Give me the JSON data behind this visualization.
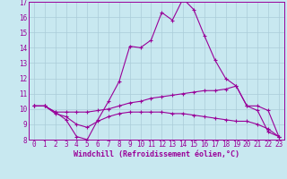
{
  "xlabel": "Windchill (Refroidissement éolien,°C)",
  "xlim": [
    -0.5,
    23.5
  ],
  "ylim": [
    8,
    17
  ],
  "xticks": [
    0,
    1,
    2,
    3,
    4,
    5,
    6,
    7,
    8,
    9,
    10,
    11,
    12,
    13,
    14,
    15,
    16,
    17,
    18,
    19,
    20,
    21,
    22,
    23
  ],
  "yticks": [
    8,
    9,
    10,
    11,
    12,
    13,
    14,
    15,
    16,
    17
  ],
  "bg_color": "#c8e8f0",
  "line_color": "#990099",
  "grid_color": "#aaccd8",
  "series": [
    [
      10.2,
      10.2,
      9.8,
      9.3,
      8.2,
      8.0,
      9.3,
      10.5,
      11.8,
      14.1,
      14.0,
      14.5,
      16.3,
      15.8,
      17.2,
      16.5,
      14.8,
      13.2,
      12.0,
      11.5,
      10.2,
      9.9,
      8.5,
      8.2
    ],
    [
      10.2,
      10.2,
      9.8,
      9.8,
      9.8,
      9.8,
      9.9,
      10.0,
      10.2,
      10.4,
      10.5,
      10.7,
      10.8,
      10.9,
      11.0,
      11.1,
      11.2,
      11.2,
      11.3,
      11.5,
      10.2,
      10.2,
      9.9,
      8.2
    ],
    [
      10.2,
      10.2,
      9.7,
      9.5,
      9.0,
      8.8,
      9.2,
      9.5,
      9.7,
      9.8,
      9.8,
      9.8,
      9.8,
      9.7,
      9.7,
      9.6,
      9.5,
      9.4,
      9.3,
      9.2,
      9.2,
      9.0,
      8.7,
      8.2
    ]
  ],
  "font_family": "monospace",
  "tick_fontsize": 5.5,
  "xlabel_fontsize": 6.0
}
